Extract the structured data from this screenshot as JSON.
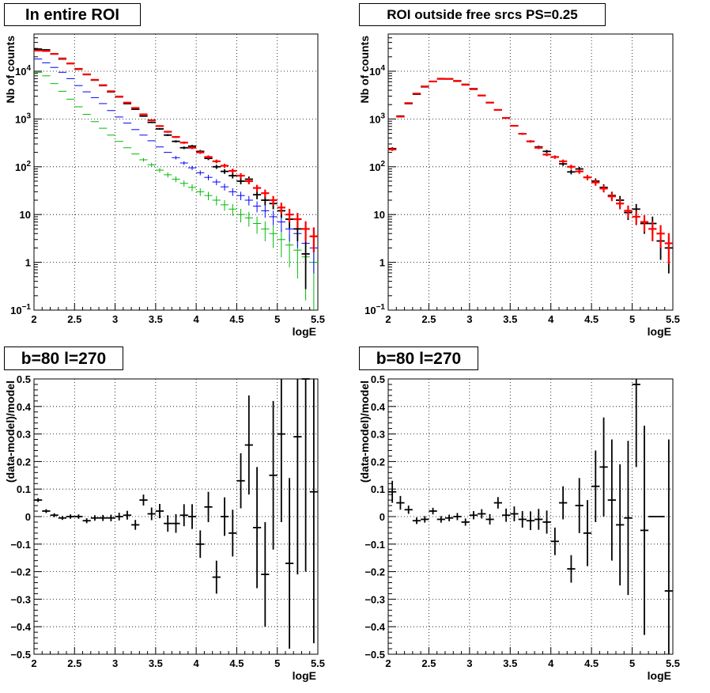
{
  "colors": {
    "data": "#000000",
    "total_model": "#ff0000",
    "blue_component": "#0000ff",
    "green_component": "#00bb00",
    "grid": "#000000"
  },
  "chart_data": [
    {
      "type": "scatter",
      "title": "In entire ROI",
      "xlabel": "logE",
      "ylabel": "Nb of counts",
      "xlim": [
        2,
        5.5
      ],
      "ylim": [
        0.1,
        60000
      ],
      "yscale": "log",
      "grid": true,
      "x_ticks": [
        "2",
        "2.5",
        "3",
        "3.5",
        "4",
        "4.5",
        "5",
        "5.5"
      ],
      "y_ticks": [
        {
          "v": 0.1,
          "base": "10",
          "exp": "−1"
        },
        {
          "v": 1,
          "base": "1",
          "exp": ""
        },
        {
          "v": 10,
          "base": "10",
          "exp": ""
        },
        {
          "v": 100,
          "base": "10",
          "exp": "2"
        },
        {
          "v": 1000,
          "base": "10",
          "exp": "3"
        },
        {
          "v": 10000,
          "base": "10",
          "exp": "4"
        }
      ],
      "x": [
        2.05,
        2.15,
        2.25,
        2.35,
        2.45,
        2.55,
        2.65,
        2.75,
        2.85,
        2.95,
        3.05,
        3.15,
        3.25,
        3.35,
        3.45,
        3.55,
        3.65,
        3.75,
        3.85,
        3.95,
        4.05,
        4.15,
        4.25,
        4.35,
        4.45,
        4.55,
        4.65,
        4.75,
        4.85,
        4.95,
        5.05,
        5.15,
        5.25,
        5.35,
        5.45
      ],
      "series": [
        {
          "role": "data",
          "values": [
            29000,
            28000,
            23000,
            18000,
            14500,
            11000,
            8500,
            6500,
            5000,
            3700,
            2900,
            2100,
            1600,
            1150,
            850,
            620,
            460,
            340,
            250,
            270,
            210,
            150,
            100,
            80,
            65,
            50,
            55,
            26,
            20,
            17,
            12,
            8,
            5,
            1.5,
            3.5
          ]
        },
        {
          "role": "model_total",
          "values": [
            27000,
            26500,
            23000,
            18500,
            14500,
            11200,
            8600,
            6600,
            5100,
            3800,
            2950,
            2200,
            1700,
            1250,
            940,
            710,
            540,
            420,
            320,
            250,
            200,
            160,
            130,
            105,
            82,
            65,
            50,
            36,
            28,
            20,
            14,
            10,
            8,
            5,
            3.5
          ]
        },
        {
          "role": "component_blue",
          "values": [
            18000,
            15000,
            12000,
            9500,
            7000,
            5000,
            3700,
            2800,
            2100,
            1500,
            1100,
            820,
            600,
            460,
            350,
            260,
            200,
            155,
            120,
            95,
            75,
            60,
            48,
            38,
            30,
            25,
            20,
            15,
            12,
            9,
            7,
            5,
            4,
            2.5,
            2
          ]
        },
        {
          "role": "component_green",
          "values": [
            9500,
            8000,
            5500,
            3800,
            2600,
            1800,
            1250,
            880,
            640,
            460,
            340,
            250,
            185,
            140,
            110,
            85,
            68,
            55,
            45,
            37,
            30,
            25,
            20,
            16,
            13,
            10,
            8.5,
            6.5,
            5,
            4,
            3,
            2.3,
            1.8,
            1.3,
            1
          ]
        }
      ]
    },
    {
      "type": "scatter",
      "title": "ROI outside free srcs PS=0.25",
      "xlabel": "logE",
      "ylabel": "Nb of counts",
      "xlim": [
        2,
        5.5
      ],
      "ylim": [
        0.1,
        60000
      ],
      "yscale": "log",
      "grid": true,
      "x_ticks": [
        "2",
        "2.5",
        "3",
        "3.5",
        "4",
        "4.5",
        "5",
        "5.5"
      ],
      "y_ticks": [
        {
          "v": 0.1,
          "base": "10",
          "exp": "−1"
        },
        {
          "v": 1,
          "base": "1",
          "exp": ""
        },
        {
          "v": 10,
          "base": "10",
          "exp": ""
        },
        {
          "v": 100,
          "base": "10",
          "exp": "2"
        },
        {
          "v": 1000,
          "base": "10",
          "exp": "3"
        },
        {
          "v": 10000,
          "base": "10",
          "exp": "4"
        }
      ],
      "x": [
        2.05,
        2.15,
        2.25,
        2.35,
        2.45,
        2.55,
        2.65,
        2.75,
        2.85,
        2.95,
        3.05,
        3.15,
        3.25,
        3.35,
        3.45,
        3.55,
        3.65,
        3.75,
        3.85,
        3.95,
        4.05,
        4.15,
        4.25,
        4.35,
        4.45,
        4.55,
        4.65,
        4.75,
        4.85,
        4.95,
        5.05,
        5.15,
        5.25,
        5.35,
        5.45
      ],
      "series": [
        {
          "role": "data",
          "values": [
            240,
            1150,
            2100,
            3300,
            4700,
            6100,
            7000,
            6900,
            6300,
            5300,
            4300,
            3100,
            2200,
            1550,
            1050,
            720,
            490,
            340,
            260,
            210,
            160,
            115,
            78,
            90,
            60,
            50,
            37,
            25,
            20,
            11,
            13,
            6.5,
            6.5,
            2.8,
            2
          ]
        },
        {
          "role": "model_total",
          "values": [
            230,
            1120,
            2150,
            3400,
            4800,
            6100,
            6900,
            6900,
            6200,
            5200,
            4200,
            3100,
            2200,
            1550,
            1050,
            720,
            490,
            340,
            250,
            180,
            160,
            130,
            100,
            80,
            60,
            47,
            35,
            24,
            17,
            12,
            9,
            7,
            5,
            4,
            2.5
          ]
        }
      ]
    },
    {
      "type": "scatter",
      "title": "b=80 l=270",
      "xlabel": "logE",
      "ylabel": "(data-model)/model",
      "xlim": [
        2,
        5.5
      ],
      "ylim": [
        -0.5,
        0.5
      ],
      "grid": true,
      "x_ticks": [
        "2",
        "2.5",
        "3",
        "3.5",
        "4",
        "4.5",
        "5",
        "5.5"
      ],
      "y_ticks": [
        "−0.5",
        "−0.4",
        "−0.3",
        "−0.2",
        "−0.1",
        "0",
        "0.1",
        "0.2",
        "0.3",
        "0.4",
        "0.5"
      ],
      "x": [
        2.05,
        2.15,
        2.25,
        2.35,
        2.45,
        2.55,
        2.65,
        2.75,
        2.85,
        2.95,
        3.05,
        3.15,
        3.25,
        3.35,
        3.45,
        3.55,
        3.65,
        3.75,
        3.85,
        3.95,
        4.05,
        4.15,
        4.25,
        4.35,
        4.45,
        4.55,
        4.65,
        4.75,
        4.85,
        4.95,
        5.05,
        5.15,
        5.25,
        5.35,
        5.45
      ],
      "values": [
        0.06,
        0.02,
        0.005,
        -0.005,
        0.0,
        0.0,
        -0.015,
        -0.005,
        -0.005,
        -0.005,
        0.0,
        0.005,
        -0.03,
        0.06,
        0.01,
        0.02,
        -0.025,
        -0.025,
        0.005,
        0.0,
        -0.1,
        0.035,
        -0.22,
        0.0,
        -0.06,
        0.13,
        0.26,
        -0.04,
        -0.21,
        0.15,
        0.3,
        -0.17,
        0.29,
        0.5,
        0.09
      ],
      "errors": [
        0.007,
        0.007,
        0.007,
        0.007,
        0.008,
        0.008,
        0.009,
        0.01,
        0.011,
        0.012,
        0.014,
        0.016,
        0.018,
        0.02,
        0.023,
        0.026,
        0.03,
        0.034,
        0.04,
        0.045,
        0.05,
        0.055,
        0.06,
        0.07,
        0.085,
        0.1,
        0.18,
        0.22,
        0.19,
        0.27,
        0.32,
        0.31,
        0.5,
        0.7,
        0.55
      ]
    },
    {
      "type": "scatter",
      "title": "b=80 l=270",
      "xlabel": "logE",
      "ylabel": "(data-model)/model",
      "xlim": [
        2,
        5.5
      ],
      "ylim": [
        -0.5,
        0.5
      ],
      "grid": true,
      "x_ticks": [
        "2",
        "2.5",
        "3",
        "3.5",
        "4",
        "4.5",
        "5",
        "5.5"
      ],
      "y_ticks": [
        "−0.5",
        "−0.4",
        "−0.3",
        "−0.2",
        "−0.1",
        "0",
        "0.1",
        "0.2",
        "0.3",
        "0.4",
        "0.5"
      ],
      "x": [
        2.05,
        2.15,
        2.25,
        2.35,
        2.45,
        2.55,
        2.65,
        2.75,
        2.85,
        2.95,
        3.05,
        3.15,
        3.25,
        3.35,
        3.45,
        3.55,
        3.65,
        3.75,
        3.85,
        3.95,
        4.05,
        4.15,
        4.25,
        4.35,
        4.45,
        4.55,
        4.65,
        4.75,
        4.85,
        4.95,
        5.05,
        5.15,
        5.25,
        5.35,
        5.45
      ],
      "values": [
        0.09,
        0.05,
        0.025,
        -0.015,
        -0.01,
        0.02,
        -0.01,
        -0.005,
        0.0,
        -0.02,
        0.005,
        0.01,
        -0.01,
        0.05,
        0.005,
        0.01,
        -0.01,
        -0.015,
        -0.01,
        -0.02,
        -0.09,
        0.05,
        -0.19,
        0.04,
        -0.06,
        0.11,
        0.18,
        0.06,
        -0.03,
        -0.005,
        0.48,
        -0.05,
        0.0,
        0.0,
        -0.27
      ],
      "errors": [
        0.04,
        0.025,
        0.015,
        0.012,
        0.012,
        0.012,
        0.012,
        0.012,
        0.013,
        0.013,
        0.015,
        0.017,
        0.019,
        0.021,
        0.024,
        0.027,
        0.03,
        0.034,
        0.038,
        0.042,
        0.05,
        0.06,
        0.05,
        0.1,
        0.12,
        0.13,
        0.18,
        0.22,
        0.22,
        0.28,
        0.3,
        0.38,
        0.0,
        0.0,
        0.55
      ]
    }
  ]
}
